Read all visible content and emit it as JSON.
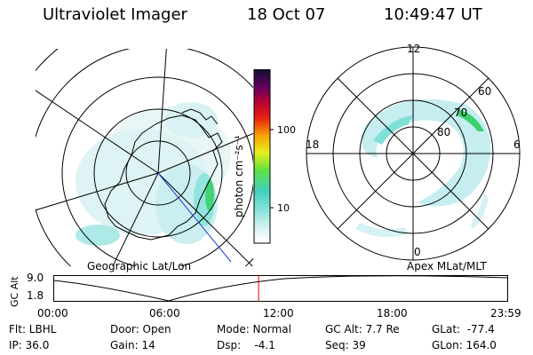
{
  "header": {
    "instrument": "Ultraviolet Imager",
    "date": "18 Oct 07",
    "time": "10:49:47 UT"
  },
  "colorbar": {
    "unit_label": "photon cm⁻²s⁻¹",
    "ticks": [
      "100",
      "10"
    ]
  },
  "left_map": {
    "caption": "Geographic Lat/Lon"
  },
  "right_map": {
    "caption": "Apex MLat/MLT",
    "mlt_labels": [
      "12",
      "18",
      "6",
      "0"
    ],
    "lat_labels": [
      "60",
      "70",
      "80"
    ]
  },
  "altitude_plot": {
    "ylabel": "GC Alt",
    "y_ticks": [
      "9.0",
      "1.8"
    ],
    "x_ticks": [
      "00:00",
      "06:00",
      "12:00",
      "18:00",
      "23:59"
    ],
    "current_time_fraction": 0.4513
  },
  "info": {
    "flt": "Flt: LBHL",
    "ip": "IP: 36.0",
    "door": "Door: Open",
    "gain": "Gain: 14",
    "mode": "Mode: Normal",
    "dsp": "Dsp:    -4.1",
    "gc_alt": "GC Alt: 7.7 Re",
    "seq": "Seq: 39",
    "glat": "GLat:  -77.4",
    "glon": "GLon: 164.0"
  },
  "colors": {
    "aurora_low": "#cfeff2",
    "aurora_mid": "#6ee0d8",
    "aurora_high": "#3cd070",
    "time_marker": "#e00000"
  }
}
